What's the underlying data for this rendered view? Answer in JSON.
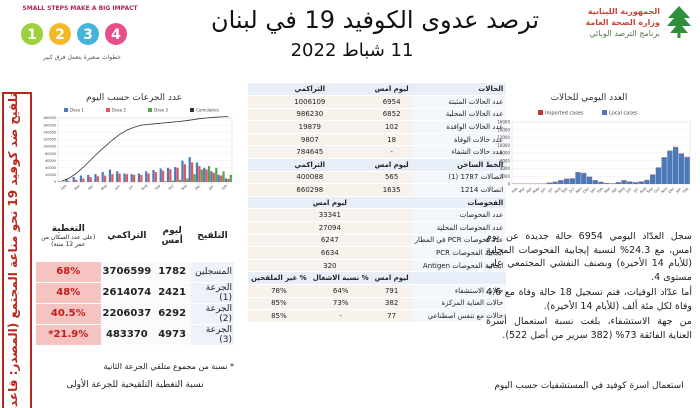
{
  "header": {
    "title": "ترصد عدوى الكوفيد 19 في لبنان",
    "date": "11 شباط 2022",
    "moph_line1": "الجمهورية اللبنانية",
    "moph_line2": "وزارة الصحة العامة",
    "moph_line3": "برنامج الترصد الوبائي",
    "small_steps_title": "SMALL STEPS MAKE A BIG IMPACT",
    "small_steps_tagline": "خطوات صغيرة بتعمل فرق كبير",
    "small_steps_numbers": [
      "1",
      "2",
      "3",
      "4"
    ]
  },
  "left": {
    "banner": "التلقيح ضد كوفيد 19 نحو مناعة المجتمع (المصدر: قاعدة بيانات",
    "chart_title": "عدد الجرعات حسب اليوم",
    "table": {
      "headers": [
        "التلقيح",
        "ليوم أمس",
        "التراكمي",
        "التغطية",
        "(على عدد السكان من عمر 12 سنة)"
      ],
      "rows": [
        {
          "label": "المسجلين",
          "yesterday": "1782",
          "cumulative": "3706599",
          "coverage": "68%"
        },
        {
          "label": "الجرعة (1)",
          "yesterday": "2421",
          "cumulative": "2614074",
          "coverage": "48%"
        },
        {
          "label": "الجرعة (2)",
          "yesterday": "6292",
          "cumulative": "2206037",
          "coverage": "40.5%"
        },
        {
          "label": "الجرعة (3)",
          "yesterday": "4973",
          "cumulative": "483370",
          "coverage": "21.9%*"
        }
      ]
    },
    "note_1": "* نسبة من مجموع متلقي الجرعة الثانية",
    "note_2": "نسبة التغطية التلقيحية للجرعة الأولى"
  },
  "stats": {
    "cases_header": [
      "الحالات",
      "ليوم امس",
      "التراكمي"
    ],
    "cases_rows": [
      {
        "label": "عدد الحالات المثبتة",
        "today": "6954",
        "total": "1006109"
      },
      {
        "label": "عدد الحالات المحلية",
        "today": "6852",
        "total": "986230"
      },
      {
        "label": "عدد الحالات الوافدة",
        "today": "102",
        "total": "19879"
      },
      {
        "label": "عدد حالات الوفاة",
        "today": "18",
        "total": "9807"
      },
      {
        "label": "عدد حالات الشفاء",
        "today": "-",
        "total": "784645"
      }
    ],
    "hotline_header": [
      "الخط الساخن",
      "ليوم امس",
      "التراكمي"
    ],
    "hotline_rows": [
      {
        "label": "اتصالات 1787 (1)",
        "today": "565",
        "total": "400088"
      },
      {
        "label": "اتصالات 1214",
        "today": "1635",
        "total": "660298"
      }
    ],
    "tests_header": [
      "الفحوصات",
      "ليوم امس"
    ],
    "tests_rows": [
      {
        "label": "عدد الفحوصات",
        "value": "33341"
      },
      {
        "label": "عدد الفحوصات المحلية",
        "value": "27094"
      },
      {
        "label": "عدد فحوصات PCR في المطار",
        "value": "6247"
      },
      {
        "label": "ايجابية الفحوصات PCR",
        "value": "6634"
      },
      {
        "label": "ايجابية الفحوصات Antigen",
        "value": "320"
      }
    ],
    "hosp_header": [
      "",
      "ليوم امس",
      "% نسبة الاشغال",
      "% غير الملقحين"
    ],
    "hosp_rows": [
      {
        "label": "حالات الاستشفاء",
        "today": "791",
        "occupancy": "64%",
        "unvaccinated": "78%"
      },
      {
        "label": "حالات العناية المركزة",
        "today": "382",
        "occupancy": "73%",
        "unvaccinated": "85%"
      },
      {
        "label": "حالات مع تنفس اصطناعي",
        "today": "77",
        "occupancy": "-",
        "unvaccinated": "85%"
      }
    ]
  },
  "right": {
    "chart_title": "العدد اليومي للحالات",
    "summary_p1": "سجل العدّاد اليومي 6954 حالة جديدة عن يوم امس، مع 24.3% لنسبة إيجابية الفحوصات المحلية (للأيام 14 الأخيرة) وبصنف التفشي المجتمعي على مستوى 4.",
    "summary_p2": "أما عدّاد الوفيات، فتم تسجيل 18 حالة وفاة مع 4.6 وفاة لكل مئة ألف (للأيام 14 الأخيرة).",
    "summary_p3": "من جهة الاستشفاء، بلغت نسبة استعمال أسرة العناية الفائقة 73% (382 سرير من أصل 522).",
    "hospital_caption": "استعمال اسرة كوفيد في المستشفيات حسب اليوم"
  },
  "colors": {
    "accent_red": "#b8281f",
    "coverage_bg": "#f6c4c0",
    "imported_cases": "#c0392b",
    "local_cases": "#4e79b8"
  },
  "chart_data": [
    {
      "type": "bar",
      "title": "العدد اليومي للحالات",
      "legend": [
        "Imported cases",
        "Local cases"
      ],
      "legend_position": "top",
      "x_tick_labels": [
        "Feb",
        "Mar",
        "Apr",
        "May",
        "Jun",
        "Jul",
        "Aug",
        "Sep",
        "Oct",
        "Nov",
        "Dec",
        "Jan",
        "Feb",
        "Mar",
        "Apr",
        "May",
        "Jun",
        "Jul",
        "Aug",
        "Sep",
        "Oct",
        "Nov",
        "Dec",
        "Jan",
        "Feb"
      ],
      "y_tick_labels": [
        "16000",
        "14000",
        "12000",
        "10000",
        "8000",
        "6000",
        "4000",
        "2000",
        "0"
      ],
      "ylim": [
        0,
        16000
      ],
      "series": [
        {
          "name": "Local cases",
          "values": [
            0,
            10,
            20,
            30,
            20,
            60,
            300,
            500,
            900,
            1300,
            1400,
            3000,
            2800,
            1800,
            900,
            500,
            200,
            100,
            400,
            900,
            600,
            400,
            600,
            1000,
            2400,
            4200,
            6800,
            8500,
            9500,
            7800,
            6900
          ]
        },
        {
          "name": "Imported cases",
          "values": [
            0,
            0,
            0,
            2,
            5,
            10,
            20,
            30,
            25,
            20,
            20,
            25,
            30,
            20,
            15,
            20,
            40,
            60,
            80,
            60,
            40,
            30,
            40,
            50,
            80,
            100,
            120,
            110,
            100,
            100,
            102
          ]
        }
      ]
    },
    {
      "type": "bar",
      "title": "عدد الجرعات حسب اليوم",
      "legend": [
        "Dose 1",
        "Dose 2",
        "Dose 3",
        "Cumulative"
      ],
      "legend_position": "top",
      "x_tick_labels": [
        "Feb",
        "Mar",
        "Apr",
        "May",
        "Jun",
        "Jul",
        "Aug",
        "Sep",
        "Oct",
        "Nov",
        "Dec",
        "Jan",
        "Feb"
      ],
      "y_tick_labels": [
        "180000",
        "160000",
        "140000",
        "120000",
        "100000",
        "80000",
        "60000",
        "40000",
        "20000",
        "0"
      ],
      "ylim": [
        0,
        180000
      ],
      "series": [
        {
          "name": "Dose 1",
          "values": [
            2000,
            8000,
            14000,
            18000,
            20000,
            22000,
            28000,
            35000,
            30000,
            24000,
            22000,
            24000,
            30000,
            34000,
            38000,
            40000,
            42000,
            60000,
            70000,
            55000,
            40000,
            30000,
            20000,
            10000
          ]
        },
        {
          "name": "Dose 2",
          "values": [
            0,
            2000,
            6000,
            10000,
            14000,
            16000,
            18000,
            22000,
            24000,
            22000,
            20000,
            20000,
            24000,
            28000,
            32000,
            36000,
            40000,
            50000,
            55000,
            45000,
            35000,
            26000,
            18000,
            9000
          ]
        },
        {
          "name": "Dose 3",
          "values": [
            0,
            0,
            0,
            0,
            0,
            0,
            0,
            0,
            0,
            0,
            0,
            0,
            0,
            0,
            2000,
            4000,
            6000,
            10000,
            22000,
            35000,
            45000,
            40000,
            30000,
            20000
          ]
        },
        {
          "name": "Cumulative",
          "values": [
            2000,
            10000,
            24000,
            42000,
            62000,
            82000,
            100000,
            118000,
            134000,
            146000,
            154000,
            160000,
            162000,
            164000,
            166000,
            168000,
            170000,
            172000,
            175000,
            178000,
            180000,
            182000,
            183000,
            184000
          ]
        }
      ]
    }
  ]
}
